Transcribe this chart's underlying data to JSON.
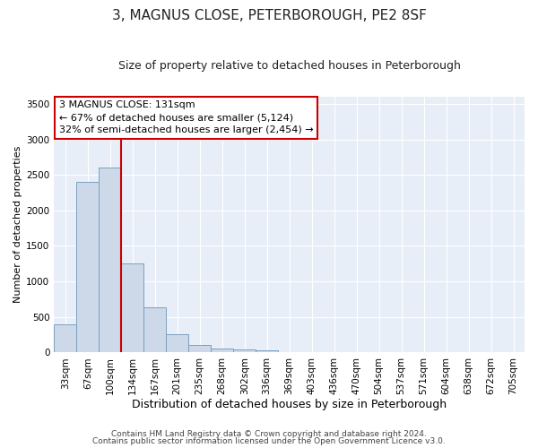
{
  "title": "3, MAGNUS CLOSE, PETERBOROUGH, PE2 8SF",
  "subtitle": "Size of property relative to detached houses in Peterborough",
  "xlabel": "Distribution of detached houses by size in Peterborough",
  "ylabel": "Number of detached properties",
  "categories": [
    "33sqm",
    "67sqm",
    "100sqm",
    "134sqm",
    "167sqm",
    "201sqm",
    "235sqm",
    "268sqm",
    "302sqm",
    "336sqm",
    "369sqm",
    "403sqm",
    "436sqm",
    "470sqm",
    "504sqm",
    "537sqm",
    "571sqm",
    "604sqm",
    "638sqm",
    "672sqm",
    "705sqm"
  ],
  "values": [
    400,
    2400,
    2600,
    1250,
    640,
    260,
    110,
    60,
    40,
    30,
    0,
    0,
    0,
    0,
    0,
    0,
    0,
    0,
    0,
    0,
    0
  ],
  "bar_color": "#cdd9e8",
  "bar_edge_color": "#7aa0c0",
  "property_line_x": 2.5,
  "property_line_color": "#cc0000",
  "ylim": [
    0,
    3600
  ],
  "yticks": [
    0,
    500,
    1000,
    1500,
    2000,
    2500,
    3000,
    3500
  ],
  "annotation_box_text": "3 MAGNUS CLOSE: 131sqm\n← 67% of detached houses are smaller (5,124)\n32% of semi-detached houses are larger (2,454) →",
  "annotation_box_color": "#ffffff",
  "annotation_box_edge_color": "#cc0000",
  "footer_line1": "Contains HM Land Registry data © Crown copyright and database right 2024.",
  "footer_line2": "Contains public sector information licensed under the Open Government Licence v3.0.",
  "plot_bg_color": "#e8eef8",
  "fig_bg_color": "#ffffff",
  "grid_color": "#ffffff",
  "title_fontsize": 11,
  "subtitle_fontsize": 9,
  "xlabel_fontsize": 9,
  "ylabel_fontsize": 8,
  "tick_fontsize": 7.5,
  "annotation_fontsize": 8,
  "footer_fontsize": 6.5
}
